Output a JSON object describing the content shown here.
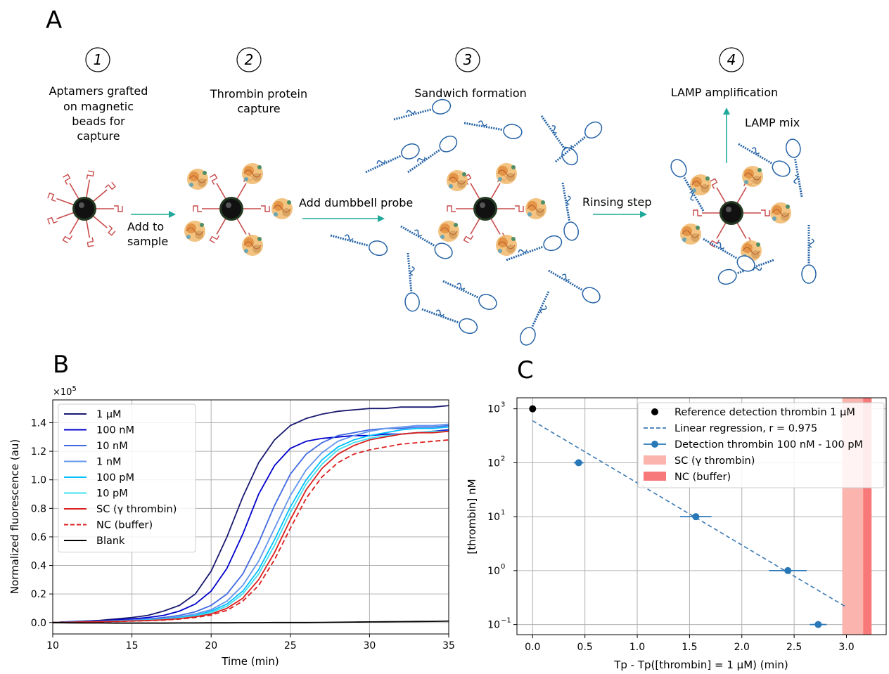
{
  "panel_a": {
    "letter": "A",
    "steps": [
      {
        "num": "1",
        "lines": [
          "Aptamers grafted",
          "on magnetic",
          "beads for",
          "capture"
        ]
      },
      {
        "num": "2",
        "lines": [
          "Thrombin protein",
          "capture"
        ]
      },
      {
        "num": "3",
        "lines": [
          "Sandwich formation"
        ]
      },
      {
        "num": "4",
        "lines": [
          "LAMP amplification"
        ]
      }
    ],
    "arrow_labels": {
      "a1": [
        "Add to",
        "sample"
      ],
      "a2": "Add dumbbell probe",
      "a3": "Rinsing step",
      "a4": "LAMP mix"
    }
  },
  "chart_data": [
    {
      "panel": "B",
      "type": "line",
      "xlabel": "Time (min)",
      "ylabel": "Normalized fluorescence (au)",
      "y_multiplier": "×10^5",
      "xlim": [
        10,
        35
      ],
      "ylim": [
        -0.08,
        1.56
      ],
      "xticks": [
        "10",
        "15",
        "20",
        "25",
        "30",
        "35"
      ],
      "yticks": [
        "0.0",
        "0.2",
        "0.4",
        "0.6",
        "0.8",
        "1.0",
        "1.2",
        "1.4"
      ],
      "grid": true,
      "legend_position": "top-left",
      "x": [
        10,
        11,
        12,
        13,
        14,
        15,
        16,
        17,
        18,
        19,
        20,
        21,
        22,
        23,
        24,
        25,
        26,
        27,
        28,
        29,
        30,
        31,
        32,
        33,
        34,
        35
      ],
      "series": [
        {
          "name": "1 μM",
          "color": "#191970",
          "dash": false,
          "values": [
            0.0,
            0.005,
            0.01,
            0.015,
            0.025,
            0.035,
            0.05,
            0.08,
            0.12,
            0.2,
            0.36,
            0.6,
            0.88,
            1.12,
            1.28,
            1.38,
            1.43,
            1.46,
            1.48,
            1.49,
            1.5,
            1.5,
            1.51,
            1.51,
            1.51,
            1.52
          ]
        },
        {
          "name": "100 nM",
          "color": "#0000cd",
          "dash": false,
          "values": [
            0.0,
            0.005,
            0.008,
            0.012,
            0.018,
            0.025,
            0.035,
            0.05,
            0.08,
            0.13,
            0.22,
            0.38,
            0.62,
            0.9,
            1.1,
            1.22,
            1.27,
            1.29,
            1.3,
            1.31,
            1.31,
            1.32,
            1.32,
            1.33,
            1.34,
            1.35
          ]
        },
        {
          "name": "10 nM",
          "color": "#4169e1",
          "dash": false,
          "values": [
            0.0,
            0.003,
            0.006,
            0.009,
            0.013,
            0.018,
            0.025,
            0.035,
            0.05,
            0.075,
            0.12,
            0.2,
            0.34,
            0.56,
            0.82,
            1.04,
            1.18,
            1.26,
            1.31,
            1.33,
            1.35,
            1.36,
            1.36,
            1.37,
            1.37,
            1.38
          ]
        },
        {
          "name": "1 nM",
          "color": "#6495ed",
          "dash": false,
          "values": [
            0.0,
            0.003,
            0.005,
            0.008,
            0.011,
            0.015,
            0.02,
            0.028,
            0.04,
            0.06,
            0.09,
            0.15,
            0.26,
            0.43,
            0.66,
            0.89,
            1.07,
            1.19,
            1.27,
            1.31,
            1.34,
            1.36,
            1.37,
            1.38,
            1.38,
            1.39
          ]
        },
        {
          "name": "100 pM",
          "color": "#00bfff",
          "dash": false,
          "values": [
            0.0,
            0.003,
            0.005,
            0.007,
            0.01,
            0.013,
            0.018,
            0.025,
            0.035,
            0.05,
            0.08,
            0.13,
            0.22,
            0.37,
            0.58,
            0.81,
            1.0,
            1.14,
            1.23,
            1.28,
            1.31,
            1.33,
            1.35,
            1.36,
            1.36,
            1.37
          ]
        },
        {
          "name": "10 pM",
          "color": "#40e0f0",
          "dash": false,
          "values": [
            0.0,
            0.002,
            0.004,
            0.006,
            0.009,
            0.012,
            0.016,
            0.022,
            0.031,
            0.045,
            0.07,
            0.115,
            0.2,
            0.34,
            0.54,
            0.77,
            0.97,
            1.11,
            1.21,
            1.26,
            1.29,
            1.31,
            1.32,
            1.33,
            1.34,
            1.34
          ]
        },
        {
          "name": "SC (γ thrombin)",
          "color": "#dc1e1e",
          "dash": false,
          "values": [
            0.0,
            0.002,
            0.004,
            0.006,
            0.008,
            0.011,
            0.014,
            0.019,
            0.027,
            0.04,
            0.06,
            0.1,
            0.17,
            0.3,
            0.49,
            0.72,
            0.93,
            1.08,
            1.18,
            1.24,
            1.28,
            1.3,
            1.32,
            1.33,
            1.33,
            1.34
          ]
        },
        {
          "name": "NC (buffer)",
          "color": "#dc1e1e",
          "dash": true,
          "values": [
            0.0,
            0.002,
            0.003,
            0.005,
            0.007,
            0.01,
            0.013,
            0.017,
            0.024,
            0.035,
            0.052,
            0.085,
            0.15,
            0.26,
            0.44,
            0.66,
            0.87,
            1.02,
            1.12,
            1.18,
            1.21,
            1.23,
            1.25,
            1.26,
            1.27,
            1.28
          ]
        },
        {
          "name": "Blank",
          "color": "#000000",
          "dash": false,
          "values": [
            0.0,
            -0.002,
            -0.003,
            -0.003,
            -0.004,
            -0.004,
            -0.004,
            -0.004,
            -0.003,
            -0.003,
            -0.002,
            -0.002,
            -0.001,
            -0.001,
            0.0,
            0.0,
            0.0,
            0.001,
            0.002,
            0.003,
            0.004,
            0.005,
            0.006,
            0.007,
            0.008,
            0.01
          ]
        }
      ]
    },
    {
      "panel": "C",
      "type": "scatter",
      "xlabel": "Tp - Tp([thrombin] = 1 μM) (min)",
      "ylabel": "[thrombin] nM",
      "y_scale": "log",
      "xlim": [
        -0.15,
        3.38
      ],
      "ylim": [
        0.065,
        1600
      ],
      "xticks": [
        "0.0",
        "0.5",
        "1.0",
        "1.5",
        "2.0",
        "2.5",
        "3.0"
      ],
      "yticks": [
        {
          "base": "10",
          "exp": "3"
        },
        {
          "base": "10",
          "exp": "2"
        },
        {
          "base": "10",
          "exp": "1"
        },
        {
          "base": "10",
          "exp": "0"
        },
        {
          "base": "10",
          "exp": "−1"
        }
      ],
      "grid": true,
      "legend_position": "top-right",
      "reference": {
        "name": "Reference detection thrombin 1 μM",
        "color": "#000000",
        "x": 0.0,
        "y": 1000
      },
      "regression": {
        "name": "Linear regression, r = 0.975",
        "color": "#3b78b4",
        "x": [
          0.0,
          3.0
        ],
        "y": [
          600,
          0.21
        ]
      },
      "detections": {
        "name": "Detection thrombin 100 nM - 100 pM",
        "color": "#2878b8",
        "points": [
          {
            "x": 0.44,
            "y": 100,
            "xerr": 0.0
          },
          {
            "x": 1.56,
            "y": 10,
            "xerr": 0.15
          },
          {
            "x": 2.44,
            "y": 1,
            "xerr": 0.18
          },
          {
            "x": 2.73,
            "y": 0.1,
            "xerr": 0.08
          }
        ]
      },
      "bands": [
        {
          "name": "SC (γ thrombin)",
          "color": "#fbb4ae",
          "x0": 2.96,
          "x1": 3.24
        },
        {
          "name": "NC (buffer)",
          "color": "#f8797a",
          "x0": 3.16,
          "x1": 3.24
        }
      ]
    }
  ]
}
